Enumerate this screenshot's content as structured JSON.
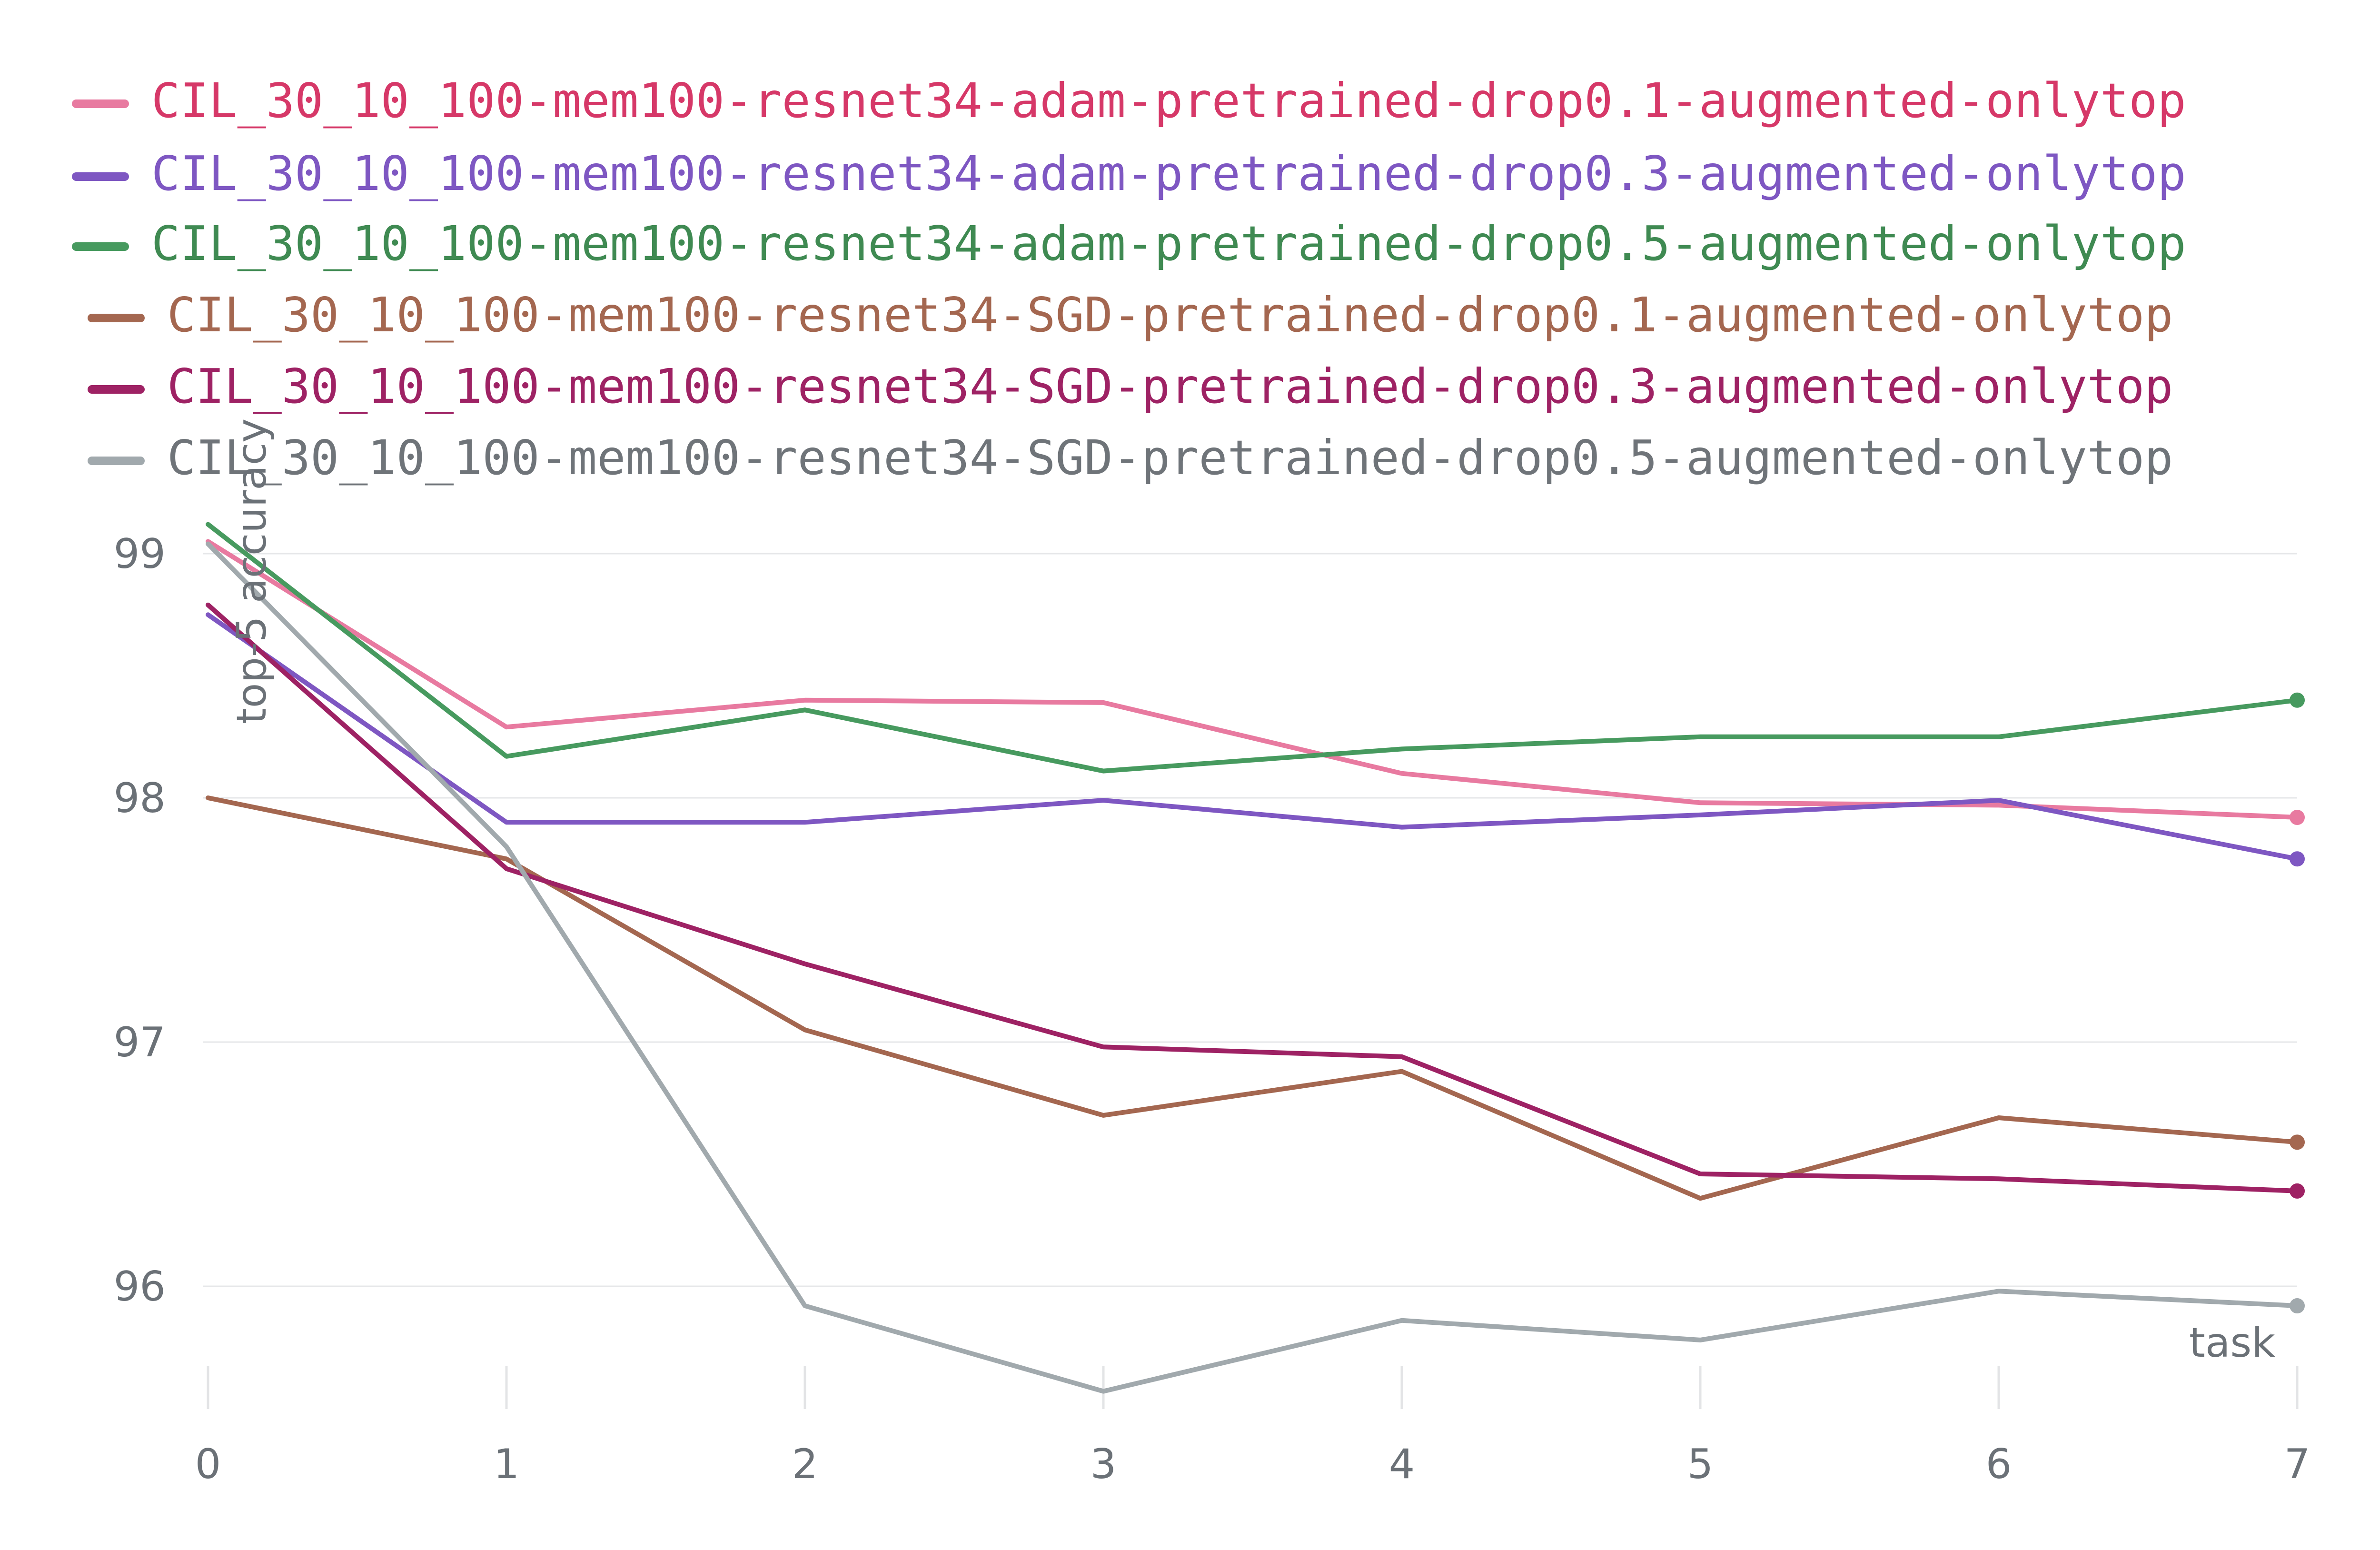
{
  "chart_data": {
    "type": "line",
    "xlabel": "task",
    "ylabel": "top-5 accuracy",
    "x": [
      0,
      1,
      2,
      3,
      4,
      5,
      6,
      7
    ],
    "xlim": [
      0,
      7
    ],
    "ylim": [
      95.5,
      99.2
    ],
    "x_ticks": [
      "0",
      "1",
      "2",
      "3",
      "4",
      "5",
      "6",
      "7"
    ],
    "y_ticks": [
      96,
      97,
      98,
      99
    ],
    "y_tick_labels": [
      "96",
      "97",
      "98",
      "99"
    ],
    "grid": "horizontal",
    "legend_position": "top",
    "series": [
      {
        "name": "CIL_30_10_100-mem100-resnet34-adam-pretrained-drop0.1-augmented-onlytop",
        "color": "#E87AA0",
        "label_color": "#D63868",
        "values": [
          99.05,
          98.29,
          98.4,
          98.39,
          98.1,
          97.98,
          97.97,
          97.92
        ]
      },
      {
        "name": "CIL_30_10_100-mem100-resnet34-adam-pretrained-drop0.3-augmented-onlytop",
        "color": "#7E57C2",
        "label_color": "#7E57C2",
        "values": [
          98.75,
          97.9,
          97.9,
          97.99,
          97.88,
          97.93,
          97.99,
          97.75
        ]
      },
      {
        "name": "CIL_30_10_100-mem100-resnet34-adam-pretrained-drop0.5-augmented-onlytop",
        "color": "#479A5F",
        "label_color": "#3F8A52",
        "values": [
          99.12,
          98.17,
          98.36,
          98.11,
          98.2,
          98.25,
          98.25,
          98.4
        ]
      },
      {
        "name": "CIL_30_10_100-mem100-resnet34-SGD-pretrained-drop0.1-augmented-onlytop",
        "color": "#A46750",
        "label_color": "#A46750",
        "values": [
          98.0,
          97.75,
          97.05,
          96.7,
          96.88,
          96.36,
          96.69,
          96.59
        ]
      },
      {
        "name": "CIL_30_10_100-mem100-resnet34-SGD-pretrained-drop0.3-augmented-onlytop",
        "color": "#9E2264",
        "label_color": "#9E2264",
        "values": [
          98.79,
          97.71,
          97.32,
          96.98,
          96.94,
          96.46,
          96.44,
          96.39
        ]
      },
      {
        "name": "CIL_30_10_100-mem100-resnet34-SGD-pretrained-drop0.5-augmented-onlytop",
        "color": "#A1A9AD",
        "label_color": "#6F7479",
        "values": [
          99.04,
          97.8,
          95.92,
          95.57,
          95.86,
          95.78,
          95.98,
          95.92
        ]
      }
    ]
  }
}
